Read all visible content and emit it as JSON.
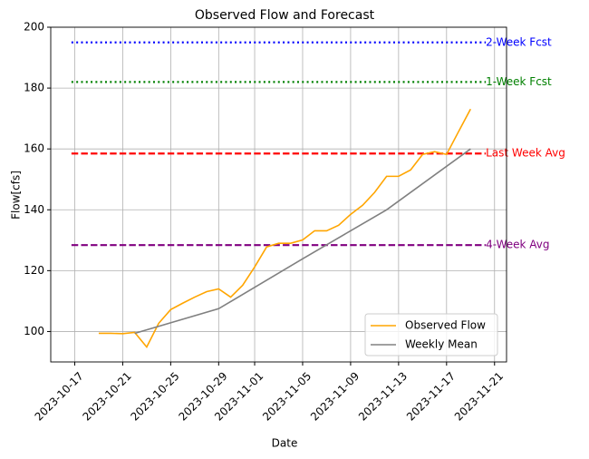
{
  "chart_data": {
    "type": "line",
    "title": "Observed Flow and Forecast",
    "x_label": "Date",
    "y_label": "Flow[cfs]",
    "xlim": [
      "2023-10-15",
      "2023-11-22"
    ],
    "xticks": [
      "2023-10-17",
      "2023-10-21",
      "2023-10-25",
      "2023-10-29",
      "2023-11-01",
      "2023-11-05",
      "2023-11-09",
      "2023-11-13",
      "2023-11-17",
      "2023-11-21"
    ],
    "ylim": [
      90,
      200
    ],
    "yticks": [
      100,
      120,
      140,
      160,
      180,
      200
    ],
    "grid": true,
    "legend": "lower right",
    "series": [
      {
        "name": "Observed Flow",
        "color": "orange",
        "x": [
          "2023-10-19",
          "2023-10-20",
          "2023-10-21",
          "2023-10-22",
          "2023-10-23",
          "2023-10-24",
          "2023-10-25",
          "2023-10-26",
          "2023-10-27",
          "2023-10-28",
          "2023-10-29",
          "2023-10-30",
          "2023-10-31",
          "2023-11-01",
          "2023-11-02",
          "2023-11-03",
          "2023-11-04",
          "2023-11-05",
          "2023-11-06",
          "2023-11-07",
          "2023-11-08",
          "2023-11-09",
          "2023-11-10",
          "2023-11-11",
          "2023-11-12",
          "2023-11-13",
          "2023-11-14",
          "2023-11-15",
          "2023-11-16",
          "2023-11-17",
          "2023-11-18",
          "2023-11-19"
        ],
        "values": [
          99.4,
          99.4,
          99.3,
          99.7,
          94.9,
          102.7,
          107.2,
          109.3,
          111.3,
          113.1,
          114,
          111.3,
          115.2,
          121.2,
          127.8,
          129,
          129,
          130.1,
          133.1,
          133.1,
          134.9,
          138.5,
          141.5,
          145.7,
          151,
          151,
          153.1,
          158.2,
          159.1,
          158.2,
          165.7,
          173.1
        ]
      },
      {
        "name": "Weekly Mean",
        "color": "gray",
        "x": [
          "2023-10-22",
          "2023-10-29",
          "2023-11-05",
          "2023-11-12",
          "2023-11-19"
        ],
        "values": [
          99.4,
          107.5,
          123.9,
          140,
          160
        ]
      }
    ],
    "hlines": [
      {
        "name": "2-Week Fcst",
        "value": 195,
        "color": "blue",
        "style": "dotted"
      },
      {
        "name": "1-Week Fcst",
        "value": 182,
        "color": "green",
        "style": "dotted"
      },
      {
        "name": "Last Week Avg",
        "value": 158.5,
        "color": "red",
        "style": "dashed"
      },
      {
        "name": "4-Week Avg",
        "value": 128.4,
        "color": "purple",
        "style": "dashed"
      }
    ]
  }
}
